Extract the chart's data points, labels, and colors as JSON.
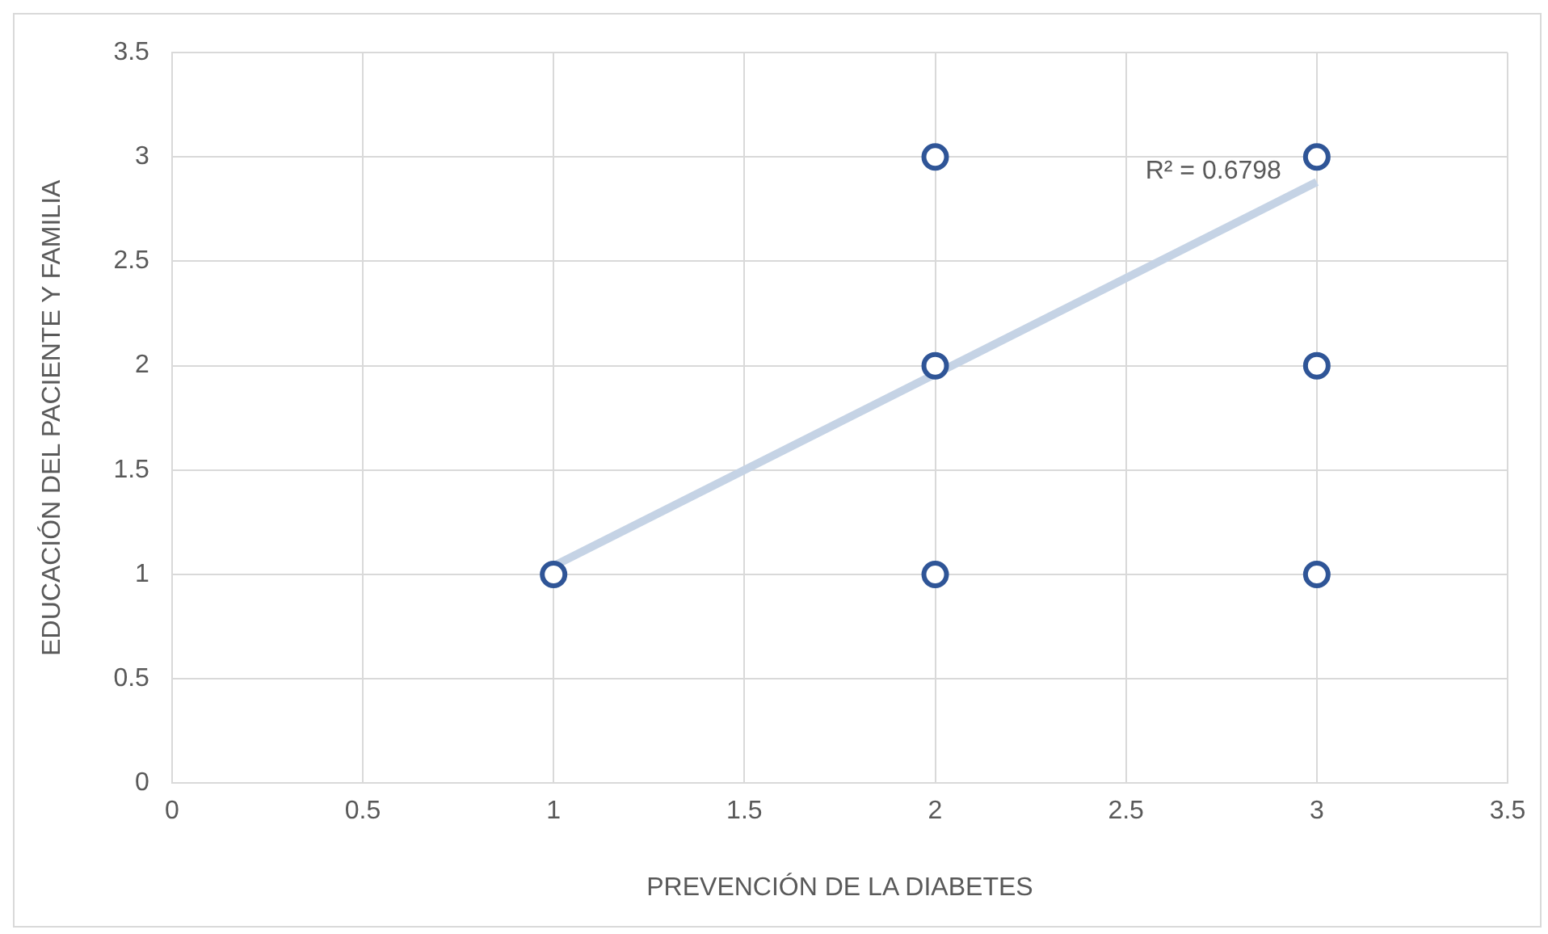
{
  "chart_data": {
    "type": "scatter",
    "xlabel": "PREVENCIÓN DE LA DIABETES",
    "ylabel": "EDUCACIÓN DEL PACIENTE Y FAMILIA",
    "x": [
      1,
      2,
      2,
      2,
      3,
      3,
      3
    ],
    "series": [
      {
        "color": "#2f5597",
        "values": [
          1,
          1,
          2,
          3,
          1,
          2,
          3
        ]
      },
      {
        "type": "line",
        "marker": "none",
        "color": "#c5d3e5",
        "x": [
          1,
          3
        ],
        "values": [
          1.04,
          2.88
        ]
      }
    ],
    "xlim": [
      0,
      3.5
    ],
    "xticks": [
      0,
      0.5,
      1,
      1.5,
      2,
      2.5,
      3,
      3.5
    ],
    "ylim": [
      0,
      3.5
    ],
    "yticks": [
      0,
      0.5,
      1,
      1.5,
      2,
      2.5,
      3,
      3.5
    ],
    "grid": true,
    "legend": false,
    "marker": "circle",
    "annotations": [
      "R² = 0.6798"
    ]
  }
}
